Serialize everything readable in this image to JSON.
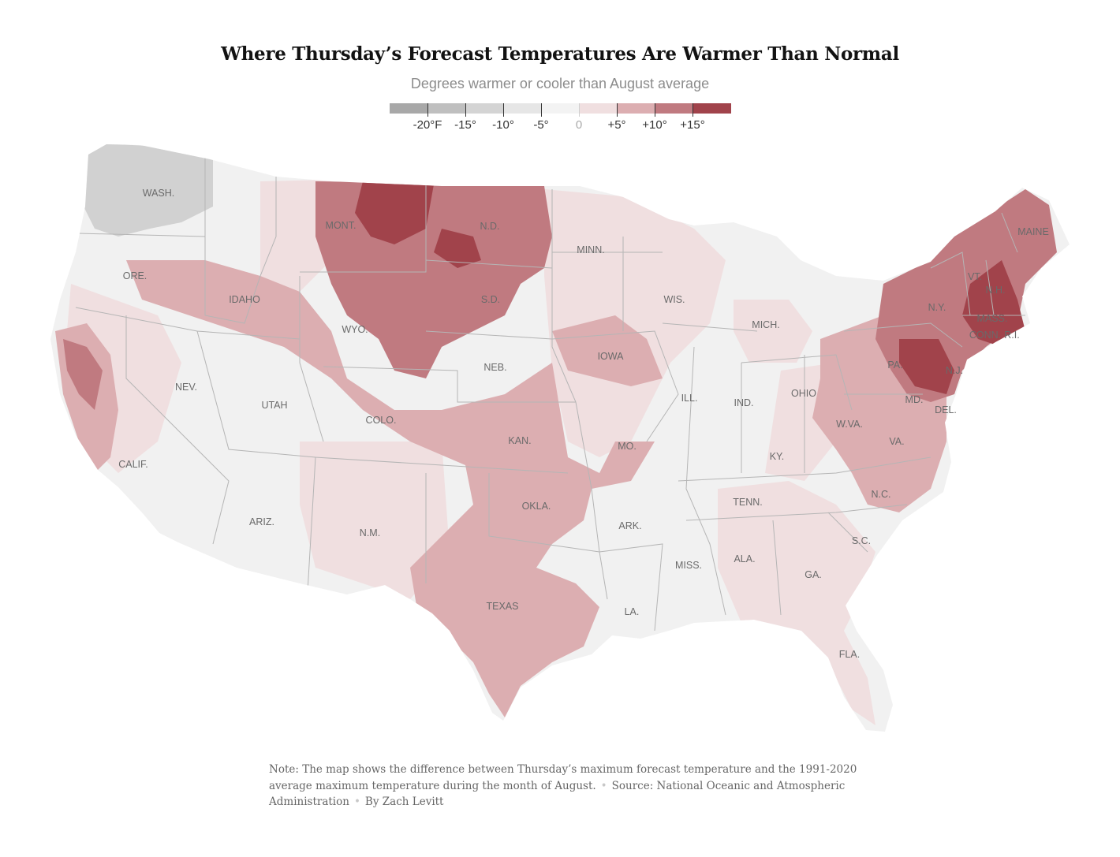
{
  "title": "Where Thursday’s Forecast Temperatures Are Warmer Than Normal",
  "subtitle": "Degrees warmer or cooler than August average",
  "legend": {
    "bins": [
      {
        "color": "#a8a8a8"
      },
      {
        "color": "#bfbfbf"
      },
      {
        "color": "#d4d4d4"
      },
      {
        "color": "#e6e6e6"
      },
      {
        "color": "#f3f3f3"
      },
      {
        "color": "#f0dfe0"
      },
      {
        "color": "#dcaeb1"
      },
      {
        "color": "#c07a80"
      },
      {
        "color": "#a1434b"
      }
    ],
    "ticks": [
      "-20°F",
      "-15°",
      "-10°",
      "-5°",
      "0",
      "+5°",
      "+10°",
      "+15°"
    ]
  },
  "map": {
    "colors": {
      "land": "#f1f1f1",
      "grey_cool": "#c6c6c6",
      "warm_light": "#f0dfe0",
      "warm_mid": "#dcaeb1",
      "warm_high": "#c07a80",
      "warm_max": "#a1434b",
      "borders": "#b5b5b5"
    },
    "state_labels": [
      "WASH.",
      "ORE.",
      "IDAHO",
      "MONT.",
      "N.D.",
      "MINN.",
      "S.D.",
      "WYO.",
      "NEB.",
      "IOWA",
      "WIS.",
      "MICH.",
      "NEV.",
      "UTAH",
      "COLO.",
      "KAN.",
      "MO.",
      "ILL.",
      "IND.",
      "OHIO",
      "CALIF.",
      "ARIZ.",
      "N.M.",
      "OKLA.",
      "ARK.",
      "TENN.",
      "KY.",
      "W.VA.",
      "VA.",
      "N.C.",
      "S.C.",
      "GA.",
      "ALA.",
      "MISS.",
      "LA.",
      "TEXAS",
      "FLA.",
      "PA.",
      "N.Y.",
      "VT.",
      "N.H.",
      "MAINE",
      "MASS.",
      "CONN.",
      "R.I.",
      "N.J.",
      "MD.",
      "DEL."
    ]
  },
  "note": {
    "text1": "Note: The map shows the difference between Thursday’s maximum forecast temperature and the 1991-2020 average maximum temperature during the month of August.",
    "text2": "Source: National Oceanic and Atmospheric Administration",
    "text3": "By Zach Levitt"
  }
}
